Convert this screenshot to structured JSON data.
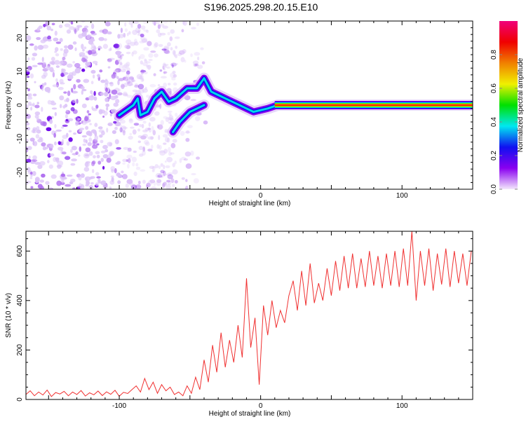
{
  "title": "S196.2025.298.20.15.E10",
  "chart_data": [
    {
      "type": "heatmap",
      "xlabel": "Height of straight line (km)",
      "ylabel": "Frequency (Hz)",
      "xlim": [
        -166,
        150
      ],
      "ylim": [
        -25,
        25
      ],
      "xticks": [
        -100,
        0,
        100
      ],
      "yticks": [
        -20,
        -10,
        0,
        10,
        20
      ],
      "colorbar": {
        "label": "Normalized spectral amplitude",
        "range": [
          0,
          1
        ],
        "ticks": [
          "0.0",
          "0.2",
          "0.4",
          "0.6",
          "0.8"
        ],
        "tick_values": [
          0,
          0.2,
          0.4,
          0.6,
          0.8
        ],
        "colors": [
          "#f4e8fc",
          "#8a00f0",
          "#1010f0",
          "#00e8f0",
          "#00e000",
          "#f0f000",
          "#f08000",
          "#f00000",
          "#f0007a"
        ]
      },
      "ridge": [
        [
          -100,
          -3
        ],
        [
          -95,
          -1.5
        ],
        [
          -90,
          0
        ],
        [
          -87,
          2
        ],
        [
          -85,
          -3
        ],
        [
          -80,
          -2
        ],
        [
          -75,
          2
        ],
        [
          -70,
          4
        ],
        [
          -65,
          1
        ],
        [
          -60,
          2
        ],
        [
          -52,
          5
        ],
        [
          -45,
          5
        ],
        [
          -40,
          8
        ],
        [
          -35,
          4
        ],
        [
          -30,
          3
        ],
        [
          -20,
          1
        ],
        [
          -10,
          -1
        ],
        [
          -5,
          -2
        ],
        [
          0,
          -1.5
        ],
        [
          5,
          -1
        ],
        [
          12,
          0
        ],
        [
          150,
          0
        ]
      ],
      "branch": [
        [
          -62,
          -8
        ],
        [
          -57,
          -5
        ],
        [
          -50,
          -2
        ],
        [
          -45,
          -1
        ],
        [
          -40,
          0
        ]
      ],
      "strong_band": {
        "x_from": 10,
        "x_to": 150,
        "freq": 0
      },
      "noise_region_x": [
        -166,
        -60
      ]
    },
    {
      "type": "line",
      "xlabel": "Height of straight line (km)",
      "ylabel": "SNR (10 * v/v)",
      "xlim": [
        -166,
        150
      ],
      "ylim": [
        0,
        680
      ],
      "xticks": [
        -100,
        0,
        100
      ],
      "yticks": [
        0,
        200,
        400,
        600
      ],
      "color": "#f03030",
      "x_start": -166,
      "x_step": 3,
      "values": [
        20,
        35,
        15,
        30,
        18,
        38,
        12,
        28,
        22,
        33,
        15,
        30,
        20,
        36,
        14,
        27,
        19,
        34,
        16,
        31,
        21,
        37,
        13,
        29,
        24,
        40,
        55,
        30,
        85,
        40,
        70,
        25,
        60,
        35,
        50,
        20,
        30,
        15,
        55,
        25,
        90,
        40,
        160,
        70,
        220,
        110,
        270,
        130,
        240,
        150,
        300,
        170,
        490,
        210,
        330,
        60,
        380,
        260,
        400,
        290,
        360,
        310,
        420,
        480,
        360,
        520,
        380,
        550,
        390,
        470,
        400,
        530,
        420,
        560,
        440,
        580,
        450,
        590,
        450,
        570,
        455,
        600,
        460,
        580,
        450,
        590,
        460,
        600,
        455,
        610,
        460,
        680,
        400,
        600,
        460,
        610,
        440,
        590,
        465,
        610,
        455,
        600,
        470,
        590,
        460,
        600
      ]
    }
  ]
}
